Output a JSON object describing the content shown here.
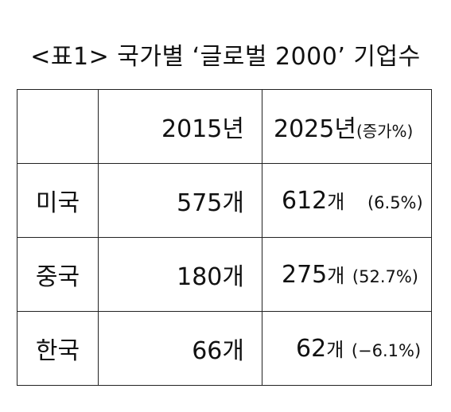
{
  "title": "<표1> 국가별 ‘글로벌 2000’ 기업수",
  "table": {
    "header": {
      "corner": "",
      "col_2015": "2015년",
      "col_2025_main": "2025년",
      "col_2025_sub": "(증가%)"
    },
    "rows": [
      {
        "country": "미국",
        "v2015_num": "575",
        "v2015_unit": "개",
        "v2025_num": "612",
        "v2025_unit": "개",
        "v2025_pct": "(6.5%)"
      },
      {
        "country": "중국",
        "v2015_num": "180",
        "v2015_unit": "개",
        "v2025_num": "275",
        "v2025_unit": "개",
        "v2025_pct": "(52.7%)"
      },
      {
        "country": "한국",
        "v2015_num": "66",
        "v2015_unit": "개",
        "v2025_num": "62",
        "v2025_unit": "개",
        "v2025_pct": "(−6.1%)"
      }
    ]
  }
}
